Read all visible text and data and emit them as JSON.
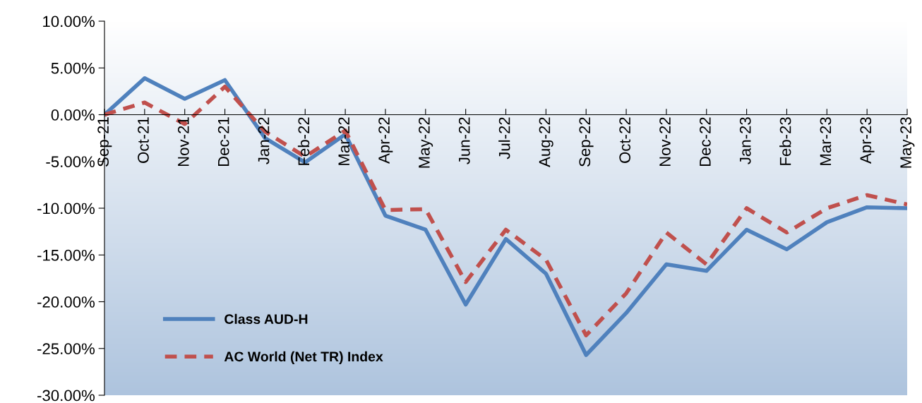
{
  "chart_data": {
    "type": "line",
    "categories": [
      "Sep-21",
      "Oct-21",
      "Nov-21",
      "Dec-21",
      "Jan-22",
      "Feb-22",
      "Mar-22",
      "Apr-22",
      "May-22",
      "Jun-22",
      "Jul-22",
      "Aug-22",
      "Sep-22",
      "Oct-22",
      "Nov-22",
      "Dec-22",
      "Jan-23",
      "Feb-23",
      "Mar-23",
      "Apr-23",
      "May-23"
    ],
    "series": [
      {
        "name": "Class AUD-H",
        "color": "#4f81bd",
        "line_style": "solid",
        "values": [
          0,
          3.9,
          1.7,
          3.7,
          -2.5,
          -5.1,
          -2.1,
          -10.8,
          -12.3,
          -20.3,
          -13.3,
          -17.0,
          -25.7,
          -21.2,
          -16.0,
          -16.7,
          -12.3,
          -14.4,
          -11.5,
          -9.9,
          -10.0
        ]
      },
      {
        "name": "AC World (Net TR) Index",
        "color": "#c0504d",
        "line_style": "dashed",
        "values": [
          0,
          1.3,
          -1.0,
          3.0,
          -1.8,
          -4.5,
          -1.7,
          -10.2,
          -10.1,
          -17.9,
          -12.3,
          -15.5,
          -23.6,
          -19.1,
          -12.6,
          -16.0,
          -10.0,
          -12.6,
          -10.0,
          -8.6,
          -9.6
        ]
      }
    ],
    "ylim": [
      -30,
      10
    ],
    "yticks": [
      {
        "value": -30,
        "label": "-30.00%"
      },
      {
        "value": -25,
        "label": "-25.00%"
      },
      {
        "value": -20,
        "label": "-20.00%"
      },
      {
        "value": -15,
        "label": "-15.00%"
      },
      {
        "value": -10,
        "label": "-10.00%"
      },
      {
        "value": -5,
        "label": "-5.00%"
      },
      {
        "value": 0,
        "label": "0.00%"
      },
      {
        "value": 5,
        "label": "5.00%"
      },
      {
        "value": 10,
        "label": "10.00%"
      }
    ],
    "legend": "bottom left",
    "grid": false,
    "marker": "none"
  }
}
